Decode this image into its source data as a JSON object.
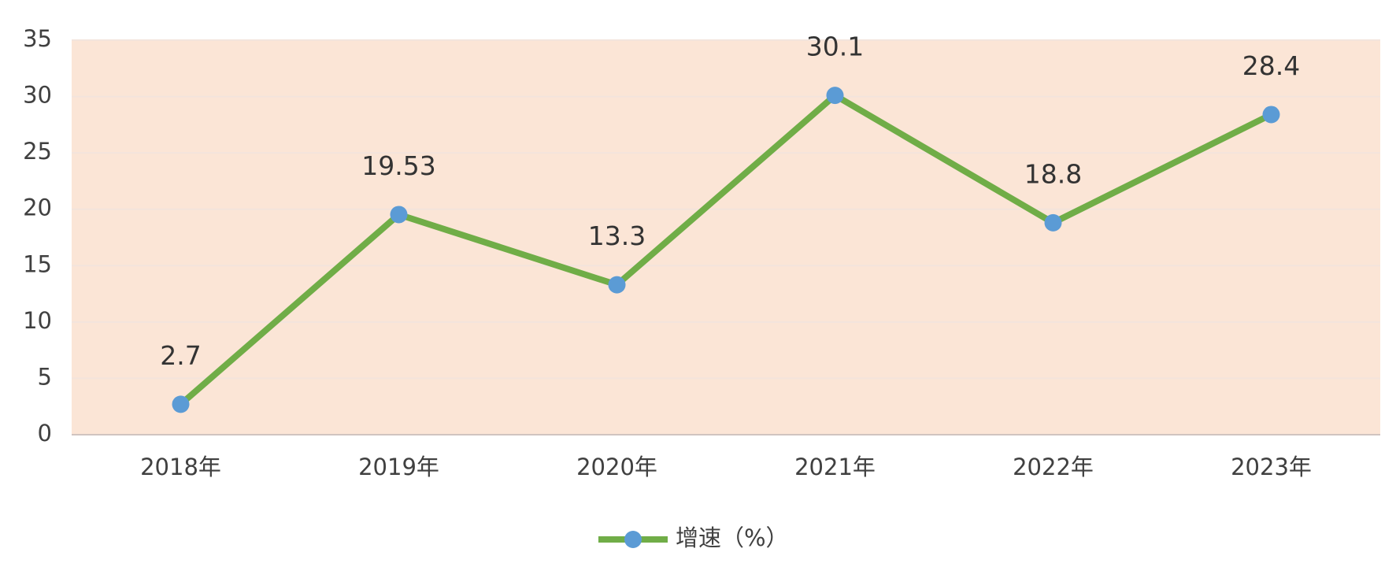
{
  "chart_data": {
    "type": "line",
    "categories": [
      "2018年",
      "2019年",
      "2020年",
      "2021年",
      "2022年",
      "2023年"
    ],
    "series": [
      {
        "name": "增速（%）",
        "color": "#70ad47",
        "marker_color": "#5b9bd5",
        "values": [
          2.7,
          19.53,
          13.3,
          30.1,
          18.8,
          28.4
        ]
      }
    ],
    "ylim": [
      0,
      35
    ],
    "yticks": [
      0,
      5,
      10,
      15,
      20,
      25,
      30,
      35
    ],
    "grid": true,
    "plot_background": "#fbe5d6",
    "legend": "bottom"
  }
}
